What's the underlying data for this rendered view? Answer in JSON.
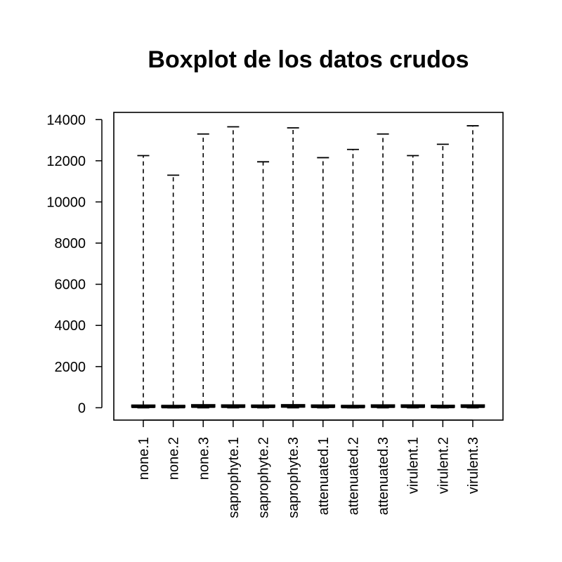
{
  "chart_data": {
    "type": "boxplot",
    "title": "Boxplot de los datos crudos",
    "xlabel": "",
    "ylabel": "",
    "ylim": [
      -600,
      14350
    ],
    "y_ticks": [
      0,
      2000,
      4000,
      6000,
      8000,
      10000,
      12000,
      14000
    ],
    "y_tick_labels": [
      "0",
      "2000",
      "4000",
      "6000",
      "8000",
      "10000",
      "12000",
      "14000"
    ],
    "categories": [
      "none.1",
      "none.2",
      "none.3",
      "saprophyte.1",
      "saprophyte.2",
      "saprophyte.3",
      "attenuated.1",
      "attenuated.2",
      "attenuated.3",
      "virulent.1",
      "virulent.2",
      "virulent.3"
    ],
    "boxes": [
      {
        "min": 0,
        "q1": 30,
        "median": 70,
        "q3": 130,
        "max": 12250
      },
      {
        "min": 0,
        "q1": 25,
        "median": 55,
        "q3": 110,
        "max": 11300
      },
      {
        "min": 0,
        "q1": 35,
        "median": 80,
        "q3": 150,
        "max": 13300
      },
      {
        "min": 0,
        "q1": 30,
        "median": 75,
        "q3": 140,
        "max": 13650
      },
      {
        "min": 0,
        "q1": 30,
        "median": 70,
        "q3": 130,
        "max": 11950
      },
      {
        "min": 0,
        "q1": 35,
        "median": 85,
        "q3": 150,
        "max": 13600
      },
      {
        "min": 0,
        "q1": 30,
        "median": 70,
        "q3": 135,
        "max": 12150
      },
      {
        "min": 0,
        "q1": 25,
        "median": 55,
        "q3": 110,
        "max": 12550
      },
      {
        "min": 0,
        "q1": 30,
        "median": 75,
        "q3": 140,
        "max": 13300
      },
      {
        "min": 0,
        "q1": 30,
        "median": 75,
        "q3": 140,
        "max": 12250
      },
      {
        "min": 0,
        "q1": 25,
        "median": 60,
        "q3": 115,
        "max": 12800
      },
      {
        "min": 0,
        "q1": 30,
        "median": 75,
        "q3": 140,
        "max": 13700
      }
    ],
    "grid": false,
    "legend": "none"
  }
}
